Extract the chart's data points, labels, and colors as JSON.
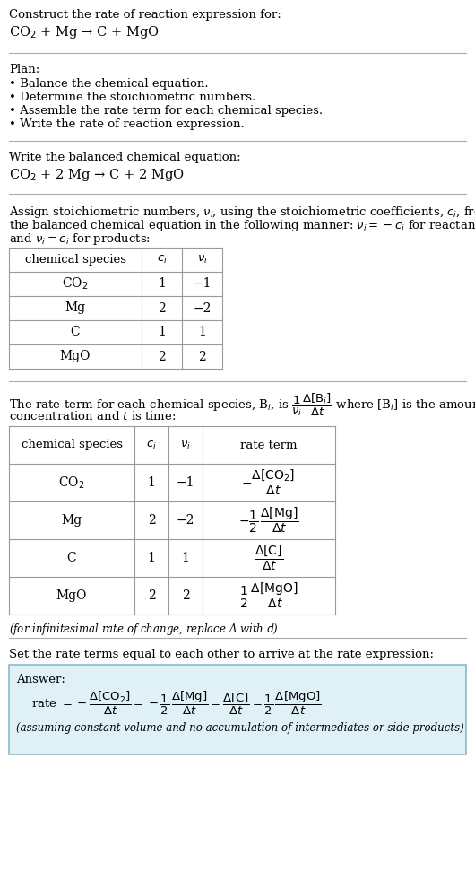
{
  "bg_color": "#ffffff",
  "text_color": "#000000",
  "font_family": "DejaVu Serif",
  "title_line1": "Construct the rate of reaction expression for:",
  "title_eq": "CO$_2$ + Mg → C + MgO",
  "separator_color": "#aaaaaa",
  "plan_header": "Plan:",
  "plan_items": [
    "• Balance the chemical equation.",
    "• Determine the stoichiometric numbers.",
    "• Assemble the rate term for each chemical species.",
    "• Write the rate of reaction expression."
  ],
  "section2_header": "Write the balanced chemical equation:",
  "balanced_eq": "CO$_2$ + 2 Mg → C + 2 MgO",
  "section3_line1": "Assign stoichiometric numbers, $\\nu_i$, using the stoichiometric coefficients, $c_i$, from",
  "section3_line2": "the balanced chemical equation in the following manner: $\\nu_i = -c_i$ for reactants",
  "section3_line3": "and $\\nu_i = c_i$ for products:",
  "table1_headers": [
    "chemical species",
    "$c_i$",
    "$\\nu_i$"
  ],
  "table1_rows": [
    [
      "CO$_2$",
      "1",
      "−1"
    ],
    [
      "Mg",
      "2",
      "−2"
    ],
    [
      "C",
      "1",
      "1"
    ],
    [
      "MgO",
      "2",
      "2"
    ]
  ],
  "section4_line1": "The rate term for each chemical species, B$_i$, is $\\dfrac{1}{\\nu_i}\\dfrac{\\Delta[\\mathrm{B}_i]}{\\Delta t}$ where [B$_i$] is the amount",
  "section4_line2": "concentration and $t$ is time:",
  "table2_headers": [
    "chemical species",
    "$c_i$",
    "$\\nu_i$",
    "rate term"
  ],
  "table2_rows": [
    [
      "CO$_2$",
      "1",
      "−1",
      "$-\\dfrac{\\Delta[\\mathrm{CO_2}]}{\\Delta t}$"
    ],
    [
      "Mg",
      "2",
      "−2",
      "$-\\dfrac{1}{2}\\,\\dfrac{\\Delta[\\mathrm{Mg}]}{\\Delta t}$"
    ],
    [
      "C",
      "1",
      "1",
      "$\\dfrac{\\Delta[\\mathrm{C}]}{\\Delta t}$"
    ],
    [
      "MgO",
      "2",
      "2",
      "$\\dfrac{1}{2}\\,\\dfrac{\\Delta[\\mathrm{MgO}]}{\\Delta t}$"
    ]
  ],
  "infinitesimal_note": "(for infinitesimal rate of change, replace Δ with $d$)",
  "section5_intro": "Set the rate terms equal to each other to arrive at the rate expression:",
  "answer_header": "Answer:",
  "answer_box_facecolor": "#dff0f7",
  "answer_box_edgecolor": "#88bbcc",
  "answer_rate_eq": "rate $= -\\dfrac{\\Delta[\\mathrm{CO_2}]}{\\Delta t} = -\\dfrac{1}{2}\\,\\dfrac{\\Delta[\\mathrm{Mg}]}{\\Delta t} = \\dfrac{\\Delta[\\mathrm{C}]}{\\Delta t} = \\dfrac{1}{2}\\,\\dfrac{\\Delta[\\mathrm{MgO}]}{\\Delta t}$",
  "answer_note": "(assuming constant volume and no accumulation of intermediates or side products)"
}
